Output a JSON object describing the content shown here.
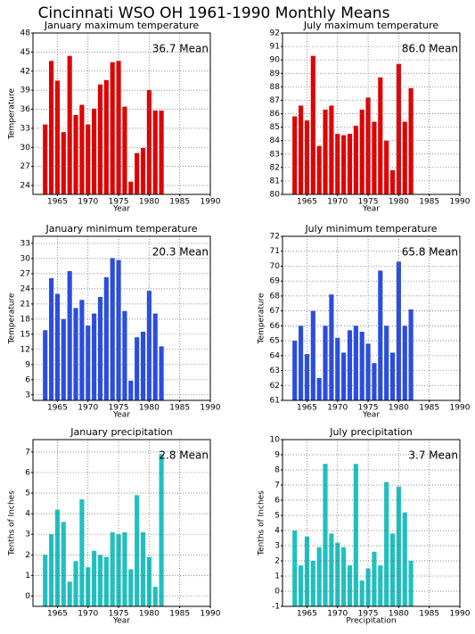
{
  "title": "Cincinnati WSO OH  1961-1990 Monthly Means",
  "chart_data": [
    {
      "type": "bar",
      "title": "January maximum temperature",
      "annotation": "36.7 Mean",
      "ylabel": "Temperature",
      "xlabel": "Year",
      "color": "#e00000",
      "grid": true,
      "x": [
        1963,
        1964,
        1965,
        1966,
        1967,
        1968,
        1969,
        1970,
        1971,
        1972,
        1973,
        1974,
        1975,
        1976,
        1977,
        1978,
        1979,
        1980,
        1981,
        1982
      ],
      "values": [
        33.6,
        43.6,
        40.5,
        32.4,
        44.4,
        35.1,
        36.7,
        33.6,
        36.1,
        39.9,
        40.6,
        43.4,
        43.6,
        36.4,
        24.6,
        29.1,
        29.9,
        39.0,
        35.8,
        35.8
      ],
      "xlim": [
        1961,
        1990
      ],
      "xticks": [
        1965,
        1970,
        1975,
        1980,
        1985,
        1990
      ],
      "ylim": [
        22.6,
        48
      ],
      "yticks": [
        24,
        27,
        30,
        33,
        36,
        39,
        42,
        45,
        48
      ]
    },
    {
      "type": "bar",
      "title": "July maximum temperature",
      "annotation": "86.0 Mean",
      "xlabel": "Year",
      "color": "#e00000",
      "grid": true,
      "x": [
        1963,
        1964,
        1965,
        1966,
        1967,
        1968,
        1969,
        1970,
        1971,
        1972,
        1973,
        1974,
        1975,
        1976,
        1977,
        1978,
        1979,
        1980,
        1981,
        1982
      ],
      "values": [
        85.8,
        86.6,
        85.5,
        90.3,
        83.6,
        86.3,
        86.6,
        84.5,
        84.4,
        84.5,
        85.1,
        86.3,
        87.2,
        85.4,
        88.7,
        84.0,
        81.8,
        89.7,
        85.4,
        87.9
      ],
      "xlim": [
        1961,
        1990
      ],
      "xticks": [
        1965,
        1970,
        1975,
        1980,
        1985,
        1990
      ],
      "ylim": [
        80,
        92
      ],
      "yticks": [
        80,
        81,
        82,
        83,
        84,
        85,
        86,
        87,
        88,
        89,
        90,
        91,
        92
      ]
    },
    {
      "type": "bar",
      "title": "January minimum temperature",
      "annotation": "20.3 Mean",
      "ylabel": "Temperature",
      "xlabel": "Year",
      "color": "#2a4de0",
      "grid": true,
      "x": [
        1963,
        1964,
        1965,
        1966,
        1967,
        1968,
        1969,
        1970,
        1971,
        1972,
        1973,
        1974,
        1975,
        1976,
        1977,
        1978,
        1979,
        1980,
        1981,
        1982
      ],
      "values": [
        15.8,
        26.1,
        23.0,
        18.0,
        27.5,
        20.2,
        21.8,
        16.7,
        19.1,
        22.4,
        26.3,
        30.1,
        29.7,
        19.6,
        5.8,
        14.4,
        15.5,
        23.6,
        19.1,
        12.6
      ],
      "xlim": [
        1961,
        1990
      ],
      "xticks": [
        1965,
        1970,
        1975,
        1980,
        1985,
        1990
      ],
      "ylim": [
        1.9,
        34.4
      ],
      "yticks": [
        3,
        6,
        9,
        12,
        15,
        18,
        21,
        24,
        27,
        30,
        33
      ]
    },
    {
      "type": "bar",
      "title": "July minimum temperature",
      "annotation": "65.8 Mean",
      "ylabel": "Temperature",
      "xlabel": "Year",
      "color": "#2a4de0",
      "grid": true,
      "x": [
        1963,
        1964,
        1965,
        1966,
        1967,
        1968,
        1969,
        1970,
        1971,
        1972,
        1973,
        1974,
        1975,
        1976,
        1977,
        1978,
        1979,
        1980,
        1981,
        1982
      ],
      "values": [
        65.0,
        66.0,
        64.1,
        67.0,
        62.5,
        66.0,
        68.1,
        65.2,
        64.2,
        65.7,
        66.0,
        65.6,
        64.8,
        63.5,
        69.7,
        66.0,
        64.2,
        70.3,
        66.0,
        67.1
      ],
      "xlim": [
        1961,
        1990
      ],
      "xticks": [
        1965,
        1970,
        1975,
        1980,
        1985,
        1990
      ],
      "ylim": [
        61,
        72
      ],
      "yticks": [
        61,
        62,
        63,
        64,
        65,
        66,
        67,
        68,
        69,
        70,
        71,
        72
      ]
    },
    {
      "type": "bar",
      "title": "January precipitation",
      "annotation": "2.8 Mean",
      "ylabel": "Tenths of Inches",
      "xlabel": "Year",
      "color": "#20c0c0",
      "grid": true,
      "x": [
        1963,
        1964,
        1965,
        1966,
        1967,
        1968,
        1969,
        1970,
        1971,
        1972,
        1973,
        1974,
        1975,
        1976,
        1977,
        1978,
        1979,
        1980,
        1981,
        1982
      ],
      "values": [
        2.0,
        3.0,
        4.2,
        3.6,
        0.7,
        1.7,
        4.7,
        1.4,
        2.2,
        2.0,
        1.9,
        3.1,
        3.0,
        3.1,
        1.3,
        4.9,
        3.1,
        1.9,
        0.45,
        6.9
      ],
      "xlim": [
        1961,
        1990
      ],
      "xticks": [
        1965,
        1970,
        1975,
        1980,
        1985,
        1990
      ],
      "ylim": [
        -0.5,
        7.6
      ],
      "yticks": [
        0,
        1,
        2,
        3,
        4,
        5,
        6,
        7
      ]
    },
    {
      "type": "bar",
      "title": "July precipitation",
      "annotation": "3.7 Mean",
      "ylabel": "Tenths of Inches",
      "xlabel": "Precipitation",
      "color": "#20c0c0",
      "grid": true,
      "x": [
        1963,
        1964,
        1965,
        1966,
        1967,
        1968,
        1969,
        1970,
        1971,
        1972,
        1973,
        1974,
        1975,
        1976,
        1977,
        1978,
        1979,
        1980,
        1981,
        1982
      ],
      "values": [
        4.0,
        1.7,
        3.6,
        2.0,
        2.9,
        8.4,
        3.8,
        3.2,
        2.9,
        1.7,
        8.4,
        0.7,
        1.5,
        2.6,
        1.7,
        7.2,
        3.8,
        6.9,
        5.2,
        2.0
      ],
      "xlim": [
        1961,
        1990
      ],
      "xticks": [
        1965,
        1970,
        1975,
        1980,
        1985,
        1990
      ],
      "ylim": [
        -1,
        10
      ],
      "yticks": [
        -1,
        0,
        1,
        2,
        3,
        4,
        5,
        6,
        7,
        8,
        9,
        10
      ]
    }
  ]
}
